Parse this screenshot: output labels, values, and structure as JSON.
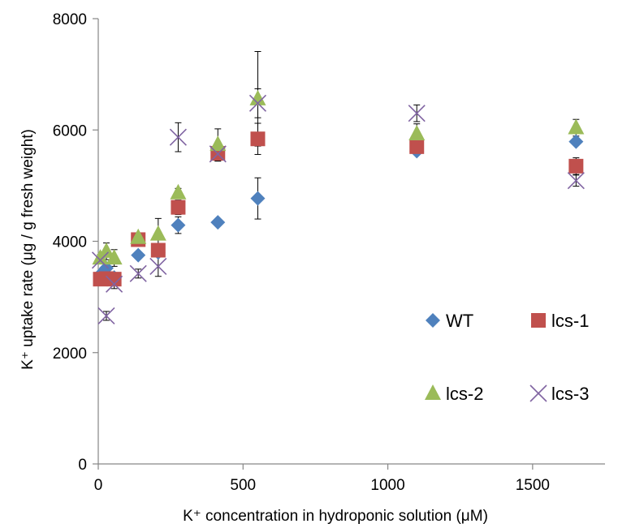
{
  "chart_data": {
    "type": "scatter",
    "title": "",
    "xlabel": "K⁺ concentration in hydroponic solution (μM)",
    "ylabel": "K⁺ uptake rate (μg / g fresh weight)",
    "xlim": [
      0,
      1750
    ],
    "ylim": [
      0,
      8000
    ],
    "xticks": [
      0,
      500,
      1000,
      1500
    ],
    "yticks": [
      0,
      2000,
      4000,
      6000,
      8000
    ],
    "xtick_labels": [
      "0",
      "500",
      "1000",
      "1500"
    ],
    "ytick_labels": [
      "0",
      "2000",
      "4000",
      "6000",
      "8000"
    ],
    "grid": false,
    "legend_position": "right",
    "series": [
      {
        "name": "WT",
        "marker": "diamond",
        "color": "#4f81bd",
        "points": [
          {
            "x": 7,
            "y": 3400,
            "err": 50
          },
          {
            "x": 28,
            "y": 3520,
            "err": 100
          },
          {
            "x": 55,
            "y": 3350,
            "err": 80
          },
          {
            "x": 138,
            "y": 3750,
            "err": 60
          },
          {
            "x": 207,
            "y": 3800,
            "err": 80
          },
          {
            "x": 276,
            "y": 4290,
            "err": 150
          },
          {
            "x": 413,
            "y": 4340,
            "err": 60
          },
          {
            "x": 551,
            "y": 4770,
            "err": 370
          },
          {
            "x": 1100,
            "y": 5620,
            "err": 60
          },
          {
            "x": 1650,
            "y": 5790,
            "err": 60
          }
        ]
      },
      {
        "name": "lcs-1",
        "marker": "square",
        "color": "#c0504d",
        "points": [
          {
            "x": 7,
            "y": 3320,
            "err": 80
          },
          {
            "x": 28,
            "y": 3330,
            "err": 100
          },
          {
            "x": 55,
            "y": 3320,
            "err": 70
          },
          {
            "x": 138,
            "y": 4030,
            "err": 60
          },
          {
            "x": 207,
            "y": 3840,
            "err": 100
          },
          {
            "x": 276,
            "y": 4610,
            "err": 130
          },
          {
            "x": 413,
            "y": 5580,
            "err": 130
          },
          {
            "x": 551,
            "y": 5840,
            "err": 280
          },
          {
            "x": 1100,
            "y": 5700,
            "err": 100
          },
          {
            "x": 1650,
            "y": 5350,
            "err": 150
          }
        ]
      },
      {
        "name": "lcs-2",
        "marker": "triangle",
        "color": "#9bbb59",
        "points": [
          {
            "x": 7,
            "y": 3700,
            "err": 60
          },
          {
            "x": 28,
            "y": 3820,
            "err": 150
          },
          {
            "x": 55,
            "y": 3700,
            "err": 150
          },
          {
            "x": 138,
            "y": 4070,
            "err": 60
          },
          {
            "x": 207,
            "y": 4130,
            "err": 280
          },
          {
            "x": 276,
            "y": 4870,
            "err": 80
          },
          {
            "x": 413,
            "y": 5740,
            "err": 280
          },
          {
            "x": 551,
            "y": 6560,
            "err": 850
          },
          {
            "x": 1100,
            "y": 5930,
            "err": 180
          },
          {
            "x": 1650,
            "y": 6040,
            "err": 150
          }
        ]
      },
      {
        "name": "lcs-3",
        "marker": "cross",
        "color": "#8064a2",
        "points": [
          {
            "x": 7,
            "y": 3660,
            "err": 60
          },
          {
            "x": 28,
            "y": 2660,
            "err": 80
          },
          {
            "x": 55,
            "y": 3230,
            "err": 80
          },
          {
            "x": 138,
            "y": 3420,
            "err": 80
          },
          {
            "x": 207,
            "y": 3550,
            "err": 180
          },
          {
            "x": 276,
            "y": 5870,
            "err": 260
          },
          {
            "x": 413,
            "y": 5570,
            "err": 130
          },
          {
            "x": 551,
            "y": 6480,
            "err": 260
          },
          {
            "x": 1100,
            "y": 6300,
            "err": 150
          },
          {
            "x": 1650,
            "y": 5090,
            "err": 100
          }
        ]
      }
    ]
  }
}
